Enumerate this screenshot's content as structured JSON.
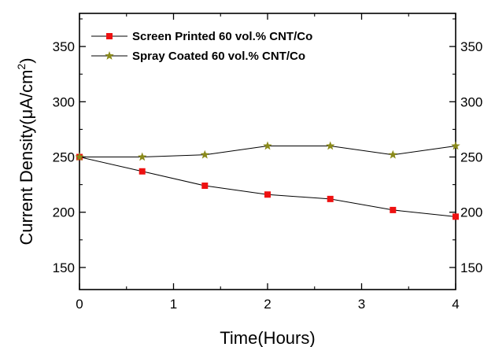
{
  "chart_data": {
    "type": "line",
    "xlabel": "Time(Hours)",
    "ylabel": "Current Density",
    "ylabel_unit": "(μA/cm",
    "ylabel_unit_sup": "2",
    "ylabel_unit_end": ")",
    "xlim": [
      0,
      4
    ],
    "ylim": [
      130,
      380
    ],
    "x_ticks": [
      0,
      1,
      2,
      3,
      4
    ],
    "x_tick_labels": [
      "0",
      "1",
      "2",
      "3",
      "4"
    ],
    "y_ticks": [
      150,
      200,
      250,
      300,
      350
    ],
    "y_tick_labels": [
      "150",
      "200",
      "250",
      "300",
      "350"
    ],
    "right_axis_mirror": true,
    "grid": false,
    "legend_position": "top-left",
    "series": [
      {
        "name": "Screen Printed 60 vol.% CNT/Co",
        "marker": "square",
        "color": "#ee1111",
        "line_color": "#000000",
        "x": [
          0,
          0.667,
          1.333,
          2.0,
          2.667,
          3.333,
          4.0
        ],
        "y": [
          250,
          237,
          224,
          216,
          212,
          202,
          196
        ]
      },
      {
        "name": "Spray Coated 60 vol.% CNT/Co",
        "marker": "star",
        "color": "#8a8a1a",
        "line_color": "#000000",
        "x": [
          0,
          0.667,
          1.333,
          2.0,
          2.667,
          3.333,
          4.0
        ],
        "y": [
          250,
          250,
          252,
          260,
          260,
          252,
          260
        ]
      }
    ]
  }
}
